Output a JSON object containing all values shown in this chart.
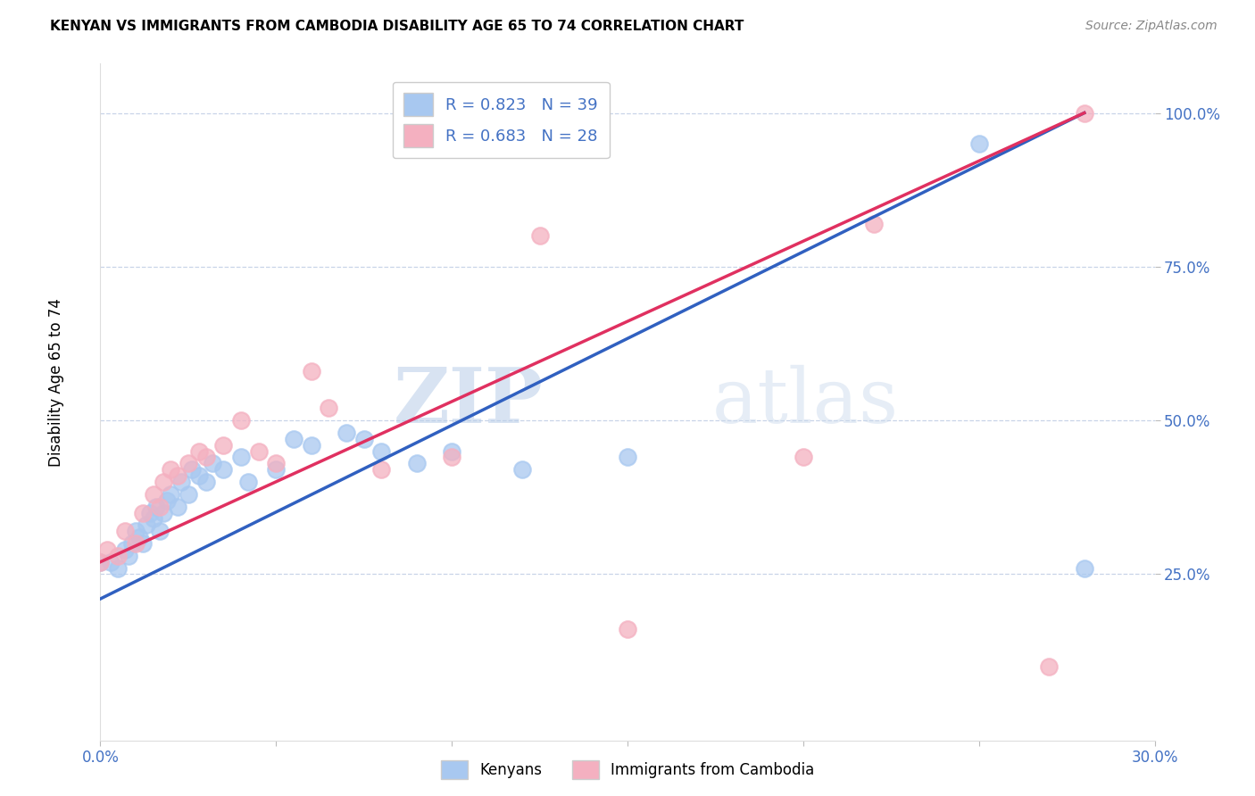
{
  "title": "KENYAN VS IMMIGRANTS FROM CAMBODIA DISABILITY AGE 65 TO 74 CORRELATION CHART",
  "source": "Source: ZipAtlas.com",
  "ylabel": "Disability Age 65 to 74",
  "xlabel_blue": "Kenyans",
  "xlabel_pink": "Immigrants from Cambodia",
  "xmin": 0.0,
  "xmax": 0.3,
  "ymin": -0.02,
  "ymax": 1.08,
  "x_ticks": [
    0.0,
    0.05,
    0.1,
    0.15,
    0.2,
    0.25,
    0.3
  ],
  "x_tick_labels": [
    "0.0%",
    "",
    "",
    "",
    "",
    "",
    "30.0%"
  ],
  "y_ticks": [
    0.25,
    0.5,
    0.75,
    1.0
  ],
  "y_tick_labels": [
    "25.0%",
    "50.0%",
    "75.0%",
    "100.0%"
  ],
  "blue_R": 0.823,
  "blue_N": 39,
  "pink_R": 0.683,
  "pink_N": 28,
  "blue_color": "#A8C8F0",
  "pink_color": "#F4B0C0",
  "blue_line_color": "#3060C0",
  "pink_line_color": "#E03060",
  "axis_color": "#4472C4",
  "grid_color": "#C8D4E8",
  "watermark_zip": "ZIP",
  "watermark_atlas": "atlas",
  "background_color": "#FFFFFF",
  "blue_scatter_x": [
    0.0,
    0.003,
    0.005,
    0.007,
    0.008,
    0.009,
    0.01,
    0.011,
    0.012,
    0.013,
    0.014,
    0.015,
    0.016,
    0.017,
    0.018,
    0.019,
    0.02,
    0.022,
    0.023,
    0.025,
    0.026,
    0.028,
    0.03,
    0.032,
    0.035,
    0.04,
    0.042,
    0.05,
    0.055,
    0.06,
    0.07,
    0.075,
    0.08,
    0.09,
    0.1,
    0.12,
    0.15,
    0.25,
    0.28
  ],
  "blue_scatter_y": [
    0.27,
    0.27,
    0.26,
    0.29,
    0.28,
    0.3,
    0.32,
    0.31,
    0.3,
    0.33,
    0.35,
    0.34,
    0.36,
    0.32,
    0.35,
    0.37,
    0.38,
    0.36,
    0.4,
    0.38,
    0.42,
    0.41,
    0.4,
    0.43,
    0.42,
    0.44,
    0.4,
    0.42,
    0.47,
    0.46,
    0.48,
    0.47,
    0.45,
    0.43,
    0.45,
    0.42,
    0.44,
    0.95,
    0.26
  ],
  "pink_scatter_x": [
    0.0,
    0.002,
    0.005,
    0.007,
    0.01,
    0.012,
    0.015,
    0.017,
    0.018,
    0.02,
    0.022,
    0.025,
    0.028,
    0.03,
    0.035,
    0.04,
    0.045,
    0.05,
    0.06,
    0.065,
    0.08,
    0.1,
    0.125,
    0.15,
    0.2,
    0.22,
    0.27,
    0.28
  ],
  "pink_scatter_y": [
    0.27,
    0.29,
    0.28,
    0.32,
    0.3,
    0.35,
    0.38,
    0.36,
    0.4,
    0.42,
    0.41,
    0.43,
    0.45,
    0.44,
    0.46,
    0.5,
    0.45,
    0.43,
    0.58,
    0.52,
    0.42,
    0.44,
    0.8,
    0.16,
    0.44,
    0.82,
    0.1,
    1.0
  ],
  "blue_line_x0": 0.0,
  "blue_line_y0": 0.21,
  "blue_line_x1": 0.28,
  "blue_line_y1": 1.0,
  "pink_line_x0": 0.0,
  "pink_line_y0": 0.27,
  "pink_line_x1": 0.28,
  "pink_line_y1": 1.0
}
